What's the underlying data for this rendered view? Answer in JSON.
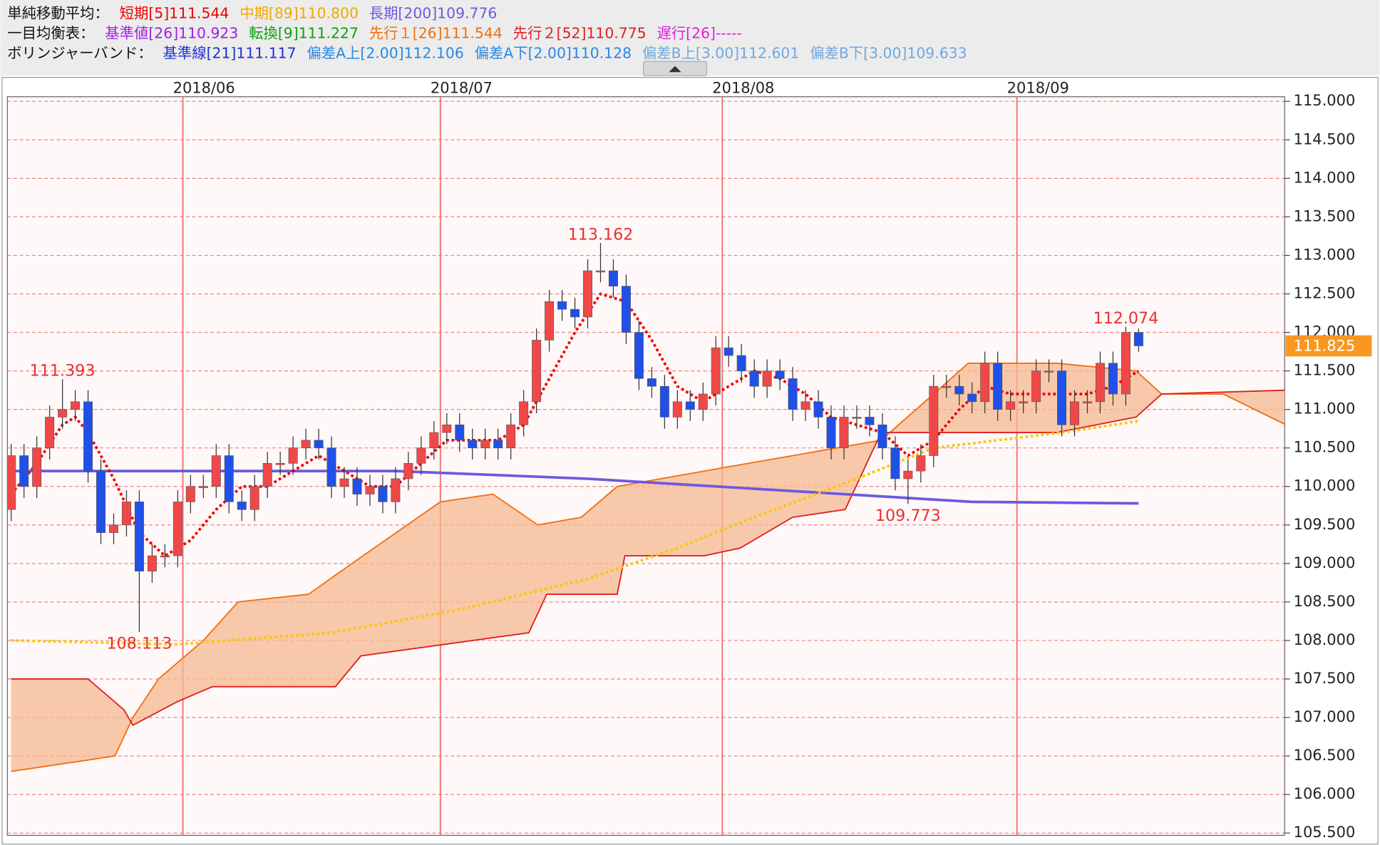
{
  "chart_data": {
    "type": "candlestick",
    "legend": [
      {
        "label": "単純移動平均：",
        "items": [
          {
            "text": "短期[5]111.544",
            "color": "#f00000"
          },
          {
            "text": "中期[89]110.800",
            "color": "#f0a800"
          },
          {
            "text": "長期[200]109.776",
            "color": "#6a5ae0"
          }
        ]
      },
      {
        "label": "一目均衡表：",
        "items": [
          {
            "text": "基準値[26]110.923",
            "color": "#a020e0"
          },
          {
            "text": "転換[9]111.227",
            "color": "#10a010"
          },
          {
            "text": "先行１[26]111.544",
            "color": "#f07010"
          },
          {
            "text": "先行２[52]110.775",
            "color": "#e02020"
          },
          {
            "text": "遅行[26]-----",
            "color": "#e020e0"
          }
        ]
      },
      {
        "label": "ボリンジャーバンド：",
        "items": [
          {
            "text": "基準線[21]111.117",
            "color": "#2030d0"
          },
          {
            "text": "偏差A上[2.00]112.106",
            "color": "#2888e0"
          },
          {
            "text": "偏差A下[2.00]110.128",
            "color": "#2888e0"
          },
          {
            "text": "偏差B上[3.00]112.601",
            "color": "#70a8e0"
          },
          {
            "text": "偏差B下[3.00]109.633",
            "color": "#70a8e0"
          }
        ]
      }
    ],
    "xlim": [
      -0.3,
      99.4
    ],
    "xticks": [
      {
        "value": 13.4,
        "label": "2018/06"
      },
      {
        "value": 33.5,
        "label": "2018/07"
      },
      {
        "value": 55.5,
        "label": "2018/08"
      },
      {
        "value": 78.5,
        "label": "2018/09"
      }
    ],
    "ylim": [
      105.47,
      115.06
    ],
    "yticks": [
      {
        "value": 115,
        "label": "115.000"
      },
      {
        "value": 114.5,
        "label": "114.500"
      },
      {
        "value": 114,
        "label": "114.000"
      },
      {
        "value": 113.5,
        "label": "113.500"
      },
      {
        "value": 113,
        "label": "113.000"
      },
      {
        "value": 112.5,
        "label": "112.500"
      },
      {
        "value": 112,
        "label": "112.000"
      },
      {
        "value": 111.5,
        "label": "111.500"
      },
      {
        "value": 111,
        "label": "111.000"
      },
      {
        "value": 110.5,
        "label": "110.500"
      },
      {
        "value": 110,
        "label": "110.000"
      },
      {
        "value": 109.5,
        "label": "109.500"
      },
      {
        "value": 109,
        "label": "109.000"
      },
      {
        "value": 108.5,
        "label": "108.500"
      },
      {
        "value": 108,
        "label": "108.000"
      },
      {
        "value": 107.5,
        "label": "107.500"
      },
      {
        "value": 107,
        "label": "107.000"
      },
      {
        "value": 106.5,
        "label": "106.500"
      },
      {
        "value": 106,
        "label": "106.000"
      },
      {
        "value": 105.5,
        "label": "105.500"
      }
    ],
    "grid": true,
    "up_color": "#f04848",
    "down_color": "#2050e8",
    "open": [
      109.7,
      110.4,
      110.0,
      110.5,
      110.9,
      111.0,
      111.1,
      110.2,
      109.4,
      109.5,
      109.8,
      108.9,
      109.1,
      109.1,
      109.8,
      110.0,
      110.0,
      110.4,
      109.8,
      109.7,
      110.0,
      110.3,
      110.3,
      110.5,
      110.6,
      110.5,
      110.0,
      110.1,
      109.9,
      110.0,
      109.8,
      110.1,
      110.3,
      110.5,
      110.7,
      110.8,
      110.6,
      110.5,
      110.6,
      110.5,
      110.8,
      111.1,
      111.9,
      112.4,
      112.3,
      112.2,
      112.8,
      112.8,
      112.6,
      112.0,
      111.4,
      111.3,
      110.9,
      111.1,
      111.0,
      111.2,
      111.8,
      111.7,
      111.5,
      111.3,
      111.5,
      111.4,
      111.0,
      111.1,
      110.9,
      110.5,
      110.9,
      110.9,
      110.8,
      110.5,
      110.1,
      110.2,
      110.4,
      111.3,
      111.3,
      111.2,
      111.1,
      111.6,
      111.0,
      111.1,
      111.1,
      111.5,
      111.5,
      110.8,
      111.1,
      111.1,
      111.6,
      111.2,
      112.0
    ],
    "high": [
      110.55,
      110.55,
      110.65,
      111.05,
      111.393,
      111.25,
      111.25,
      110.35,
      109.65,
      109.95,
      109.95,
      109.25,
      109.25,
      109.95,
      110.15,
      110.15,
      110.55,
      110.55,
      109.95,
      110.15,
      110.45,
      110.45,
      110.65,
      110.75,
      110.75,
      110.65,
      110.25,
      110.25,
      110.15,
      110.15,
      110.25,
      110.45,
      110.65,
      110.85,
      110.95,
      110.95,
      110.75,
      110.75,
      110.75,
      110.95,
      111.25,
      112.05,
      112.55,
      112.55,
      112.45,
      112.95,
      113.162,
      112.95,
      112.75,
      112.15,
      111.55,
      111.45,
      111.25,
      111.25,
      111.35,
      111.95,
      111.95,
      111.85,
      111.65,
      111.65,
      111.65,
      111.55,
      111.25,
      111.25,
      111.05,
      111.05,
      111.05,
      111.05,
      110.95,
      110.65,
      110.35,
      110.55,
      111.45,
      111.45,
      111.45,
      111.35,
      111.75,
      111.75,
      111.25,
      111.25,
      111.65,
      111.65,
      111.65,
      111.25,
      111.25,
      111.75,
      111.75,
      112.074,
      112.05
    ],
    "low": [
      109.55,
      109.85,
      109.85,
      110.35,
      110.75,
      110.85,
      110.05,
      109.25,
      109.25,
      109.35,
      108.113,
      108.75,
      108.95,
      108.95,
      109.65,
      109.85,
      109.85,
      109.65,
      109.55,
      109.55,
      109.85,
      110.15,
      110.15,
      110.35,
      110.35,
      109.85,
      109.85,
      109.75,
      109.75,
      109.65,
      109.65,
      109.95,
      110.15,
      110.35,
      110.55,
      110.45,
      110.35,
      110.35,
      110.35,
      110.35,
      110.65,
      110.95,
      111.75,
      112.15,
      112.05,
      112.05,
      112.65,
      112.45,
      111.85,
      111.25,
      111.15,
      110.75,
      110.75,
      110.85,
      110.85,
      111.05,
      111.55,
      111.35,
      111.15,
      111.15,
      111.25,
      110.85,
      110.85,
      110.75,
      110.35,
      110.35,
      110.75,
      110.65,
      110.35,
      109.95,
      109.773,
      110.05,
      110.25,
      111.15,
      111.05,
      110.95,
      110.95,
      110.85,
      110.85,
      110.95,
      110.95,
      111.35,
      110.65,
      110.65,
      110.95,
      110.95,
      111.05,
      111.05,
      111.75
    ],
    "close": [
      110.4,
      110.0,
      110.5,
      110.9,
      111.0,
      111.1,
      110.2,
      109.4,
      109.5,
      109.8,
      108.9,
      109.1,
      109.1,
      109.8,
      110.0,
      110.0,
      110.4,
      109.8,
      109.7,
      110.0,
      110.3,
      110.3,
      110.5,
      110.6,
      110.5,
      110.0,
      110.1,
      109.9,
      110.0,
      109.8,
      110.1,
      110.3,
      110.5,
      110.7,
      110.8,
      110.6,
      110.5,
      110.6,
      110.5,
      110.8,
      111.1,
      111.9,
      112.4,
      112.3,
      112.2,
      112.8,
      112.8,
      112.6,
      112.0,
      111.4,
      111.3,
      110.9,
      111.1,
      111.0,
      111.2,
      111.8,
      111.7,
      111.5,
      111.3,
      111.5,
      111.4,
      111.0,
      111.1,
      110.9,
      110.5,
      110.9,
      110.9,
      110.8,
      110.5,
      110.1,
      110.2,
      110.4,
      111.3,
      111.3,
      111.2,
      111.1,
      111.6,
      111.0,
      111.1,
      111.1,
      111.5,
      111.5,
      110.8,
      111.1,
      111.1,
      111.6,
      111.2,
      112.0,
      111.825
    ],
    "cloud": {
      "fill": "#f5b890",
      "span_a": {
        "color": "#f07010",
        "x": [
          0,
          8.1,
          9.5,
          11.5,
          15,
          17.7,
          23.2,
          26.6,
          33.5,
          37.6,
          41.1,
          44.5,
          47.3,
          54.1,
          61,
          67.9,
          72,
          74.7,
          81.6,
          87.8,
          89.8,
          94.6,
          99.5
        ],
        "values": [
          106.3,
          106.5,
          107.0,
          107.5,
          108.0,
          108.5,
          108.6,
          109.0,
          109.8,
          109.9,
          109.5,
          109.6,
          110.0,
          110.2,
          110.4,
          110.6,
          111.2,
          111.6,
          111.6,
          111.5,
          111.2,
          111.2,
          110.8
        ]
      },
      "span_b": {
        "color": "#e02020",
        "x": [
          0,
          6,
          8.8,
          9.5,
          12.9,
          15.7,
          21.2,
          25.3,
          27.3,
          40.4,
          41.8,
          47.3,
          47.9,
          54.1,
          56.9,
          61,
          65.1,
          67.9,
          81.6,
          87.8,
          89.8,
          99.5
        ],
        "values": [
          107.5,
          107.5,
          107.1,
          106.9,
          107.2,
          107.4,
          107.4,
          107.4,
          107.8,
          108.1,
          108.6,
          108.6,
          109.1,
          109.1,
          109.2,
          109.6,
          109.7,
          110.7,
          110.7,
          110.9,
          111.2,
          111.25
        ]
      }
    },
    "lines": [
      {
        "color": "#6a5ae0",
        "width": 3,
        "dash": "",
        "x": [
          0,
          30,
          45,
          55,
          65,
          75,
          88
        ],
        "values": [
          110.2,
          110.2,
          110.1,
          110.0,
          109.9,
          109.8,
          109.78
        ]
      },
      {
        "color": "#f8c800",
        "width": 3,
        "dash": "3 3",
        "x": [
          0,
          13,
          25,
          35,
          45,
          52,
          58,
          66,
          72,
          82,
          88
        ],
        "values": [
          108.0,
          107.95,
          108.1,
          108.4,
          108.8,
          109.2,
          109.6,
          110.1,
          110.5,
          110.7,
          110.85
        ]
      },
      {
        "color": "#f00000",
        "width": 3,
        "dash": "3 3",
        "x": [
          0,
          2,
          4,
          5,
          6,
          8,
          10,
          12,
          14,
          16,
          18,
          20,
          22,
          24,
          26,
          28,
          30,
          32,
          34,
          36,
          38,
          40,
          42,
          44,
          46,
          48,
          50,
          52,
          54,
          56,
          58,
          60,
          62,
          64,
          66,
          68,
          70,
          72,
          74,
          76,
          78,
          80,
          82,
          84,
          86,
          88
        ],
        "values": [
          109.9,
          110.3,
          110.8,
          110.9,
          110.7,
          110.1,
          109.4,
          109.1,
          109.3,
          109.7,
          110.0,
          110.0,
          110.2,
          110.4,
          110.2,
          110.0,
          110.0,
          110.3,
          110.6,
          110.6,
          110.6,
          110.8,
          111.4,
          112.0,
          112.5,
          112.4,
          111.9,
          111.3,
          111.1,
          111.3,
          111.5,
          111.4,
          111.2,
          110.9,
          110.8,
          110.7,
          110.4,
          110.6,
          111.0,
          111.3,
          111.2,
          111.2,
          111.2,
          111.2,
          111.3,
          111.5
        ]
      }
    ],
    "high_labels": [
      {
        "x": 4,
        "value": 111.393
      },
      {
        "x": 46,
        "value": 113.162
      },
      {
        "x": 87,
        "value": 112.074
      }
    ],
    "low_labels": [
      {
        "x": 10,
        "value": 108.113
      },
      {
        "x": 70,
        "value": 109.773
      }
    ],
    "last_price": 111.825,
    "last_price_color": "#f89820"
  }
}
